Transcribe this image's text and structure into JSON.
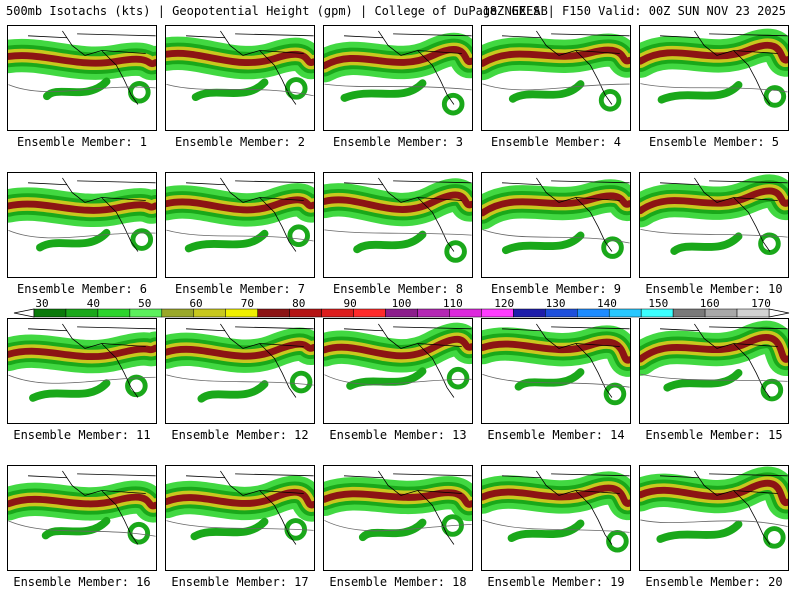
{
  "header": {
    "left": "500mb Isotachs (kts) | Geopotential Height (gpm) | College of DuPage NEXLAB",
    "right": "18Z GEFS | F150 Valid: 00Z SUN NOV 23 2025"
  },
  "members": [
    {
      "label": "Ensemble Member: 1"
    },
    {
      "label": "Ensemble Member: 2"
    },
    {
      "label": "Ensemble Member: 3"
    },
    {
      "label": "Ensemble Member: 4"
    },
    {
      "label": "Ensemble Member: 5"
    },
    {
      "label": "Ensemble Member: 6"
    },
    {
      "label": "Ensemble Member: 7"
    },
    {
      "label": "Ensemble Member: 8"
    },
    {
      "label": "Ensemble Member: 9"
    },
    {
      "label": "Ensemble Member: 10"
    },
    {
      "label": "Ensemble Member: 11"
    },
    {
      "label": "Ensemble Member: 12"
    },
    {
      "label": "Ensemble Member: 13"
    },
    {
      "label": "Ensemble Member: 14"
    },
    {
      "label": "Ensemble Member: 15"
    },
    {
      "label": "Ensemble Member: 16"
    },
    {
      "label": "Ensemble Member: 17"
    },
    {
      "label": "Ensemble Member: 18"
    },
    {
      "label": "Ensemble Member: 19"
    },
    {
      "label": "Ensemble Member: 20"
    }
  ],
  "colorbar": {
    "labels": [
      "30",
      "40",
      "50",
      "60",
      "70",
      "80",
      "90",
      "100",
      "110",
      "120",
      "130",
      "140",
      "150",
      "160",
      "170"
    ],
    "colors": [
      "#0a7a0a",
      "#1aa81a",
      "#2cd42c",
      "#5cf05c",
      "#9aa82a",
      "#c8c81e",
      "#f0f000",
      "#8c1414",
      "#b41414",
      "#dc1e1e",
      "#ff2a2a",
      "#8c1e8c",
      "#b428b4",
      "#dc28dc",
      "#ff3cff",
      "#1e1eaa",
      "#1e50dc",
      "#1e8cff",
      "#28c8ff",
      "#3cffff",
      "#7a7a7a",
      "#a8a8a8",
      "#d2d2d2"
    ]
  }
}
